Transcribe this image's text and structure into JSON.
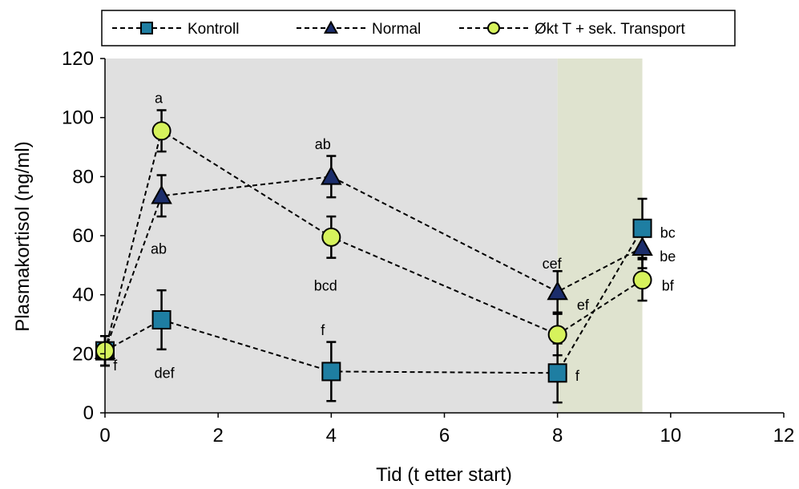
{
  "chart_data": {
    "type": "line",
    "xlabel": "Tid (t etter start)",
    "ylabel": "Plasmakortisol (ng/ml)",
    "xlim": [
      0,
      12
    ],
    "ylim": [
      0,
      120
    ],
    "xticks": [
      0,
      2,
      4,
      6,
      8,
      10,
      12
    ],
    "yticks": [
      0,
      20,
      40,
      60,
      80,
      100,
      120
    ],
    "grid": false,
    "legend_position": "top",
    "shaded_regions": [
      {
        "x_from": 0,
        "x_to": 8,
        "color": "#e0e0e0"
      },
      {
        "x_from": 8,
        "x_to": 9.5,
        "color": "#dfe3cf"
      }
    ],
    "series": [
      {
        "name": "Kontroll",
        "marker": "square",
        "color": "#1e7ea2",
        "x": [
          0,
          1,
          4,
          8,
          9.5
        ],
        "y": [
          21,
          31.5,
          14,
          13.5,
          62.5
        ],
        "err": [
          5,
          10,
          10,
          10,
          10
        ]
      },
      {
        "name": "Normal",
        "marker": "triangle",
        "color": "#1b2d6b",
        "x": [
          0,
          1,
          4,
          8,
          9.5
        ],
        "y": [
          21,
          73.5,
          80,
          41,
          56
        ],
        "err": [
          5,
          7,
          7,
          7,
          7
        ]
      },
      {
        "name": "Økt T + sek. Transport",
        "marker": "circle",
        "color": "#d6f25c",
        "x": [
          0,
          1,
          4,
          8,
          9.5
        ],
        "y": [
          21,
          95.5,
          59.5,
          26.5,
          45
        ],
        "err": [
          5,
          7,
          7,
          7,
          7
        ]
      }
    ],
    "annotations": [
      {
        "text": "a",
        "x": 0.95,
        "y": 106.5
      },
      {
        "text": "ab",
        "x": 0.95,
        "y": 55.5
      },
      {
        "text": "def",
        "x": 1.05,
        "y": 13.5
      },
      {
        "text": "f",
        "x": 0.18,
        "y": 16
      },
      {
        "text": "ab",
        "x": 3.85,
        "y": 91
      },
      {
        "text": "bcd",
        "x": 3.9,
        "y": 43
      },
      {
        "text": "f",
        "x": 3.85,
        "y": 28
      },
      {
        "text": "cef",
        "x": 7.9,
        "y": 50.5
      },
      {
        "text": "ef",
        "x": 8.45,
        "y": 36.5
      },
      {
        "text": "f",
        "x": 8.35,
        "y": 12.5
      },
      {
        "text": "bc",
        "x": 9.95,
        "y": 61
      },
      {
        "text": "be",
        "x": 9.95,
        "y": 53
      },
      {
        "text": "bf",
        "x": 9.95,
        "y": 43
      }
    ]
  },
  "colors": {
    "background_main": "#e0e0e0",
    "background_recovery": "#dfe3cf",
    "kontroll": "#1e7ea2",
    "normal": "#1b2d6b",
    "okt": "#d6f25c"
  }
}
